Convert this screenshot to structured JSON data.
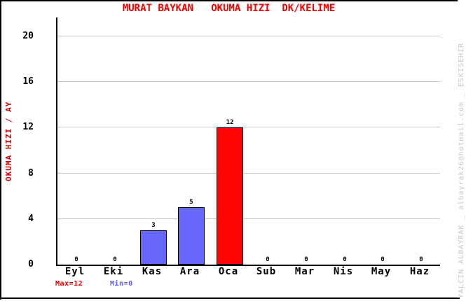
{
  "frame": {
    "background": "#FFFFFF",
    "border_color": "#000000"
  },
  "chart_data": {
    "type": "bar",
    "title": "MURAT BAYKAN   OKUMA HIZI  DK/KELIME",
    "ylabel": "OKUMA HIZI / AY",
    "xlabel": "",
    "categories": [
      "Eyl",
      "Eki",
      "Kas",
      "Ara",
      "Oca",
      "Sub",
      "Mar",
      "Nis",
      "May",
      "Haz"
    ],
    "values": [
      0,
      0,
      3,
      5,
      12,
      0,
      0,
      0,
      0,
      0
    ],
    "value_labels": [
      "0",
      "0",
      "3",
      "5",
      "12",
      "0",
      "0",
      "0",
      "0",
      "0"
    ],
    "bar_colors": [
      "#6666F8",
      "#6666F8",
      "#6666F8",
      "#6666F8",
      "#FB0505",
      "#6666F8",
      "#6666F8",
      "#6666F8",
      "#6666F8",
      "#6666F8"
    ],
    "yticks": [
      0,
      4,
      8,
      12,
      16,
      20
    ],
    "ylim": [
      0,
      21.6
    ],
    "grid": true,
    "legend": null,
    "annotations": {
      "max_label": "Max=12",
      "min_label": "Min=0"
    },
    "colors": {
      "title": "#F40000",
      "ylabel": "#E00000",
      "grid": "#C8C8C8",
      "axis": "#000000",
      "max_label": "#E00000",
      "min_label": "#6060E8",
      "watermark": "#C8C8C8"
    }
  },
  "watermark": {
    "text": "YALCIN ALBAYRAK _ albayrak26@hotmail.com _ ESKISEHIR"
  }
}
